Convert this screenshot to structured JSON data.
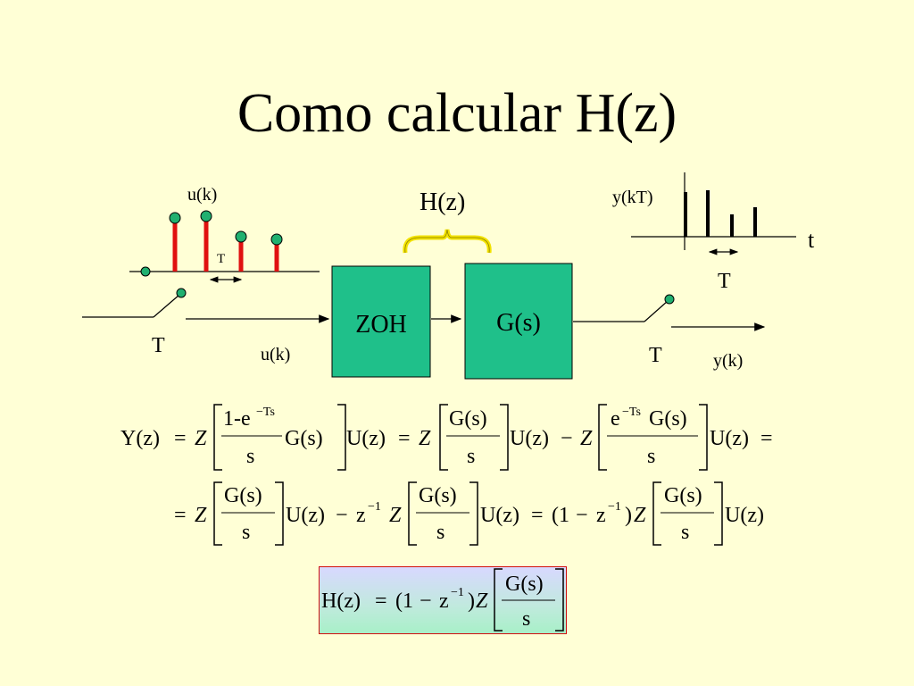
{
  "slide": {
    "title": "Como calcular H(z)"
  },
  "diagram": {
    "input_label_top": "u(k)",
    "input_label_bottom": "u(k)",
    "small_period": "T",
    "switch_in_period": "T",
    "hz_label": "H(z)",
    "zoh_label": "ZOH",
    "plant_label": "G(s)",
    "output_top": "y(kT)",
    "time_axis": "t",
    "output_period": "T",
    "switch_out_period": "T",
    "output_bottom": "y(k)"
  },
  "equations": {
    "line1": {
      "lhs": "Y(z)",
      "eq": "=",
      "z": "Z",
      "num1_prefix": "1-e",
      "num1_exp": "−Ts",
      "den1": "s",
      "g": "G(s)",
      "u": "U(z)",
      "num2": "G(s)",
      "den2": "s",
      "minus": "−",
      "num3_prefix": "e",
      "num3_exp": "−Ts",
      "num3_suffix": "G(s)",
      "den3": "s"
    },
    "line2": {
      "eq": "=",
      "z": "Z",
      "num": "G(s)",
      "den": "s",
      "u": "U(z)",
      "minus": "−",
      "zinv_base": "z",
      "zinv_exp": "−1",
      "open": "(1",
      "close": ")"
    },
    "result": {
      "lhs": "H(z)",
      "eq": "=",
      "open": "(1",
      "minus": "−",
      "zinv_base": "z",
      "zinv_exp": "−1",
      "close": ")",
      "z": "Z",
      "num": "G(s)",
      "den": "s"
    }
  },
  "colors": {
    "background": "#ffffd6",
    "block_fill": "#1fc08a",
    "impulse": "#e01010",
    "dot": "#20b070",
    "brace": "#f2e200",
    "result_border": "#d01010"
  }
}
